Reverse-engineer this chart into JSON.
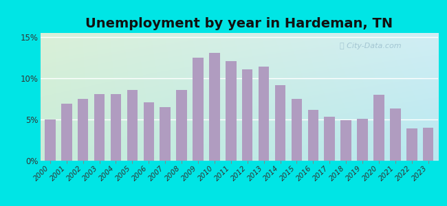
{
  "title": "Unemployment by year in Hardeman, TN",
  "years": [
    2000,
    2001,
    2002,
    2003,
    2004,
    2005,
    2006,
    2007,
    2008,
    2009,
    2010,
    2011,
    2012,
    2013,
    2014,
    2015,
    2016,
    2017,
    2018,
    2019,
    2020,
    2021,
    2022,
    2023
  ],
  "values": [
    5.0,
    6.9,
    7.5,
    8.1,
    8.1,
    8.6,
    7.1,
    6.5,
    8.6,
    12.5,
    13.1,
    12.1,
    11.1,
    11.4,
    9.2,
    7.5,
    6.2,
    5.3,
    4.9,
    5.1,
    8.0,
    6.3,
    3.9,
    4.0
  ],
  "bar_color": "#b09cc0",
  "bg_color_topleft": "#daf0d8",
  "bg_color_topright": "#d0eef5",
  "bg_color_bottomleft": "#c8ecd8",
  "bg_color_bottomright": "#b8e8f0",
  "outer_bg": "#00e5e5",
  "yticks": [
    0,
    5,
    10,
    15
  ],
  "ytick_labels": [
    "0%",
    "5%",
    "10%",
    "15%"
  ],
  "ylim": [
    0,
    15.5
  ],
  "watermark": "City-Data.com",
  "title_fontsize": 14,
  "tick_fontsize": 7.5
}
